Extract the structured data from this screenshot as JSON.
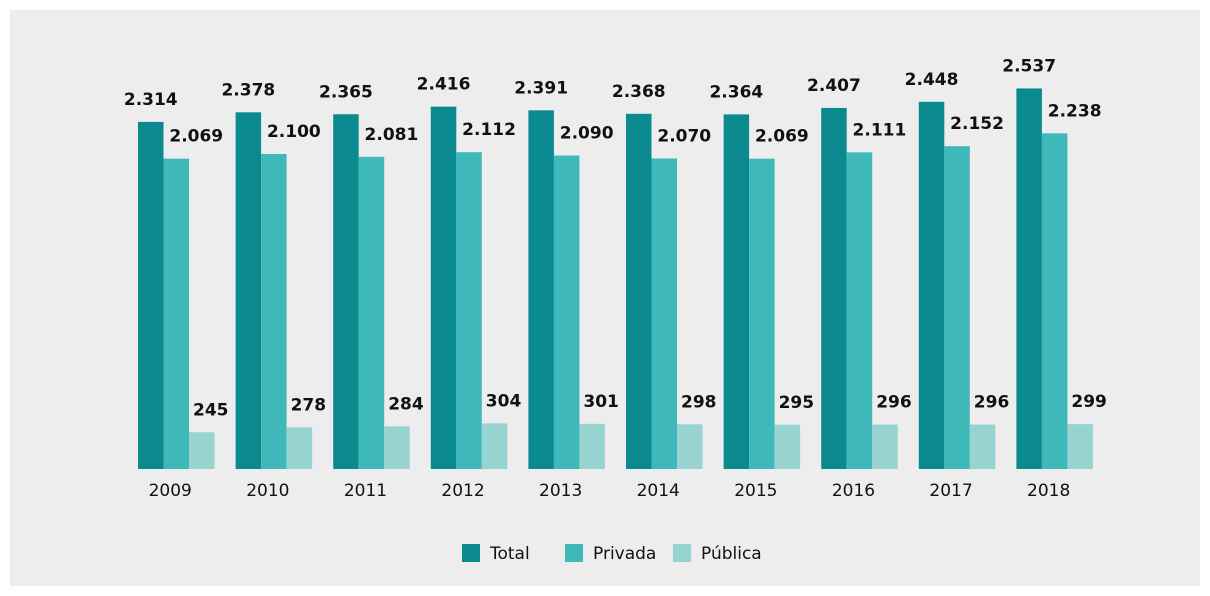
{
  "chart_data": {
    "type": "bar",
    "categories": [
      "2009",
      "2010",
      "2011",
      "2012",
      "2013",
      "2014",
      "2015",
      "2016",
      "2017",
      "2018"
    ],
    "series": [
      {
        "name": "Total",
        "color": "#0a8a8f",
        "values": [
          2314,
          2378,
          2365,
          2416,
          2391,
          2368,
          2364,
          2407,
          2448,
          2537
        ],
        "value_labels": [
          "2.314",
          "2.378",
          "2.365",
          "2.416",
          "2.391",
          "2.368",
          "2.364",
          "2.407",
          "2.448",
          "2.537"
        ]
      },
      {
        "name": "Privada",
        "color": "#3fb8b9",
        "values": [
          2069,
          2100,
          2081,
          2112,
          2090,
          2070,
          2069,
          2111,
          2152,
          2238
        ],
        "value_labels": [
          "2.069",
          "2.100",
          "2.081",
          "2.112",
          "2.090",
          "2.070",
          "2.069",
          "2.111",
          "2.152",
          "2.238"
        ]
      },
      {
        "name": "Pública",
        "color": "#96d3d1",
        "values": [
          245,
          278,
          284,
          304,
          301,
          298,
          295,
          296,
          296,
          299
        ]
      }
    ],
    "ylim": [
      0,
      3000
    ],
    "legend": "bottom"
  }
}
